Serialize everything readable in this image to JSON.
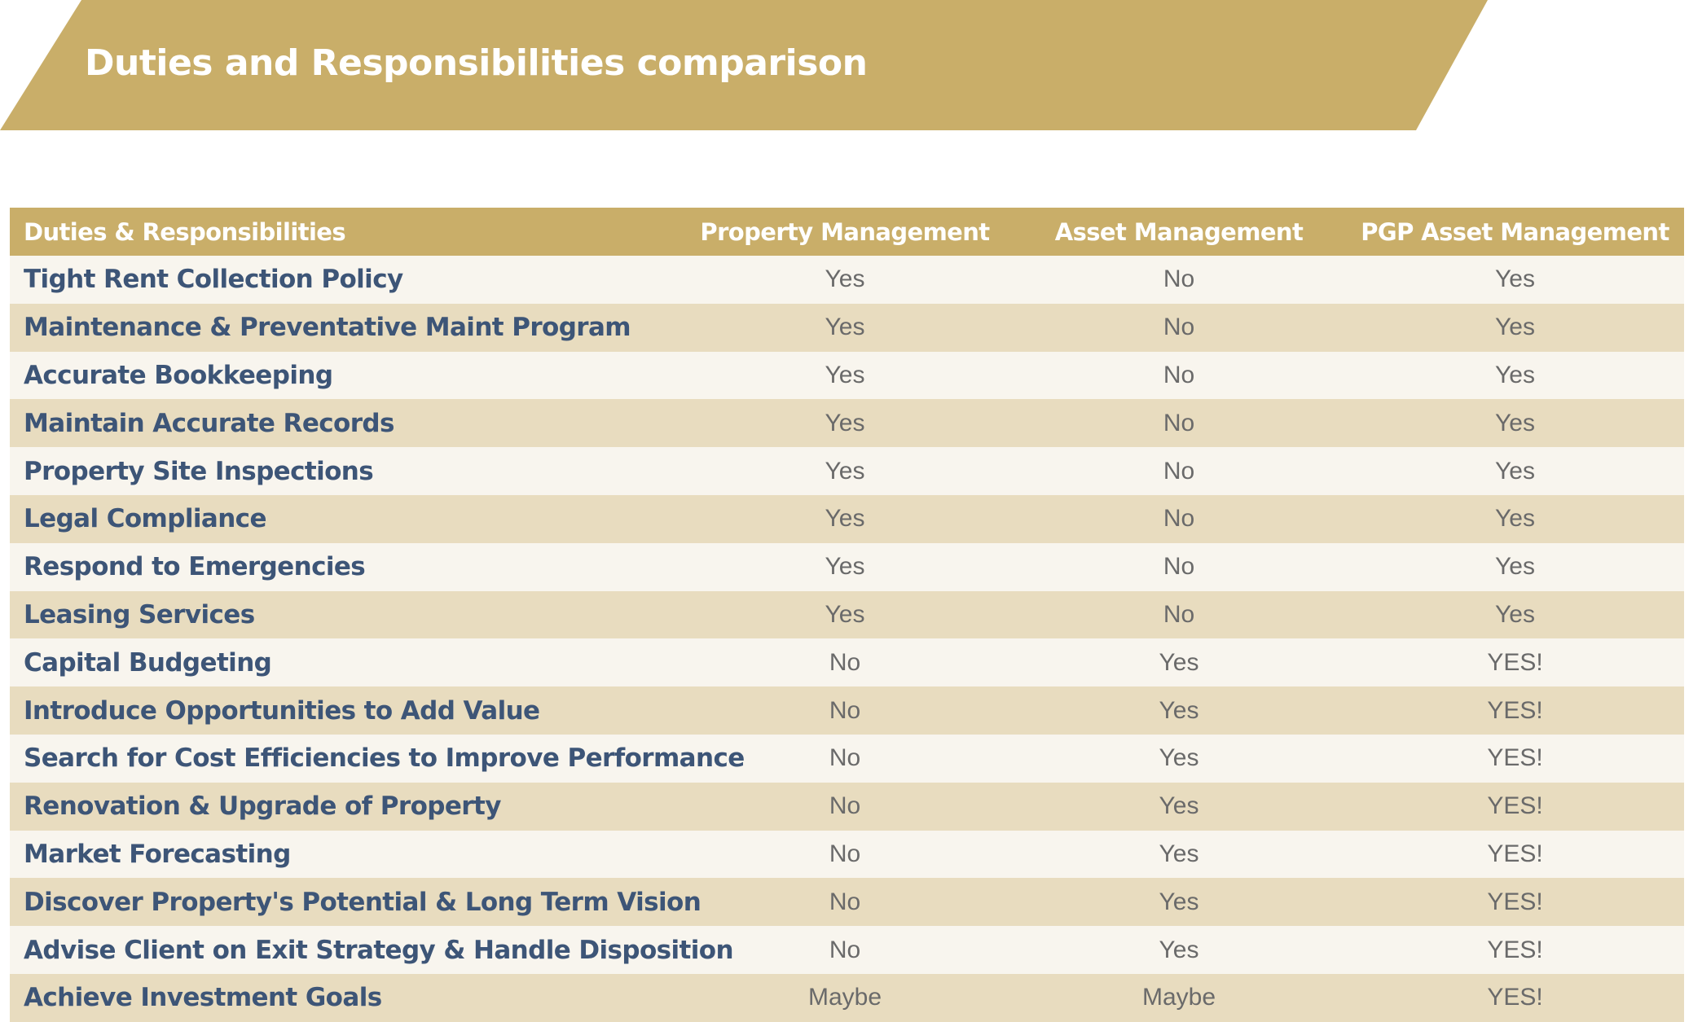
{
  "banner": {
    "title": "Duties and Responsibilities comparison"
  },
  "table": {
    "headers": [
      "Duties & Responsibilities",
      "Property Management",
      "Asset Management",
      "PGP Asset Management"
    ],
    "rows": [
      {
        "duty": "Tight Rent Collection Policy",
        "property_management": "Yes",
        "asset_management": "No",
        "pgp_asset_management": "Yes"
      },
      {
        "duty": "Maintenance & Preventative Maint Program",
        "property_management": "Yes",
        "asset_management": "No",
        "pgp_asset_management": "Yes"
      },
      {
        "duty": "Accurate Bookkeeping",
        "property_management": "Yes",
        "asset_management": "No",
        "pgp_asset_management": "Yes"
      },
      {
        "duty": "Maintain Accurate Records",
        "property_management": "Yes",
        "asset_management": "No",
        "pgp_asset_management": "Yes"
      },
      {
        "duty": "Property Site Inspections",
        "property_management": "Yes",
        "asset_management": "No",
        "pgp_asset_management": "Yes"
      },
      {
        "duty": "Legal Compliance",
        "property_management": "Yes",
        "asset_management": "No",
        "pgp_asset_management": "Yes"
      },
      {
        "duty": "Respond to Emergencies",
        "property_management": "Yes",
        "asset_management": "No",
        "pgp_asset_management": "Yes"
      },
      {
        "duty": "Leasing Services",
        "property_management": "Yes",
        "asset_management": "No",
        "pgp_asset_management": "Yes"
      },
      {
        "duty": "Capital Budgeting",
        "property_management": "No",
        "asset_management": "Yes",
        "pgp_asset_management": "YES!"
      },
      {
        "duty": "Introduce Opportunities to Add Value",
        "property_management": "No",
        "asset_management": "Yes",
        "pgp_asset_management": "YES!"
      },
      {
        "duty": "Search for Cost Efficiencies to Improve Performance",
        "property_management": "No",
        "asset_management": "Yes",
        "pgp_asset_management": "YES!"
      },
      {
        "duty": "Renovation & Upgrade of Property",
        "property_management": "No",
        "asset_management": "Yes",
        "pgp_asset_management": "YES!"
      },
      {
        "duty": "Market Forecasting",
        "property_management": "No",
        "asset_management": "Yes",
        "pgp_asset_management": "YES!"
      },
      {
        "duty": "Discover Property's Potential & Long Term Vision",
        "property_management": "No",
        "asset_management": "Yes",
        "pgp_asset_management": "YES!"
      },
      {
        "duty": "Advise Client on Exit Strategy & Handle Disposition",
        "property_management": "No",
        "asset_management": "Yes",
        "pgp_asset_management": "YES!"
      },
      {
        "duty": "Achieve Investment Goals",
        "property_management": "Maybe",
        "asset_management": "Maybe",
        "pgp_asset_management": "YES!"
      }
    ]
  },
  "colors": {
    "gold": "#c9ae69",
    "row_light": "#f8f5ee",
    "row_dark": "#e8dcbf",
    "duty_text": "#3d5577",
    "value_text": "#6a6a6a"
  }
}
